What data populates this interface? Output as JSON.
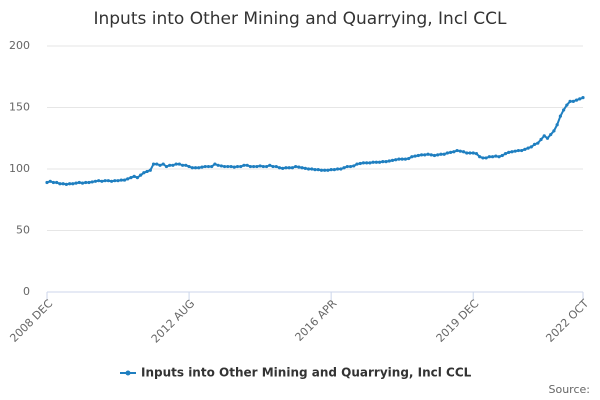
{
  "chart_data": {
    "type": "line",
    "title": "Inputs into Other Mining and Quarrying, Incl CCL",
    "source": "Source:",
    "categories": [
      "2008 DEC",
      null,
      null,
      null,
      null,
      null,
      null,
      null,
      null,
      null,
      null,
      null,
      null,
      null,
      null,
      null,
      null,
      null,
      null,
      null,
      null,
      null,
      null,
      null,
      null,
      null,
      null,
      null,
      null,
      null,
      null,
      null,
      null,
      null,
      null,
      null,
      null,
      null,
      null,
      null,
      null,
      null,
      null,
      null,
      "2012 AUG",
      null,
      null,
      null,
      null,
      null,
      null,
      null,
      null,
      null,
      null,
      null,
      null,
      null,
      null,
      null,
      null,
      null,
      null,
      null,
      null,
      null,
      null,
      null,
      null,
      null,
      null,
      null,
      null,
      null,
      null,
      null,
      null,
      null,
      null,
      null,
      null,
      null,
      null,
      null,
      null,
      null,
      null,
      null,
      "2016 APR",
      null,
      null,
      null,
      null,
      null,
      null,
      null,
      null,
      null,
      null,
      null,
      null,
      null,
      null,
      null,
      null,
      null,
      null,
      null,
      null,
      null,
      null,
      null,
      null,
      null,
      null,
      null,
      null,
      null,
      null,
      null,
      null,
      null,
      null,
      null,
      null,
      null,
      null,
      null,
      null,
      null,
      null,
      null,
      "2019 DEC",
      null,
      null,
      null,
      null,
      null,
      null,
      null,
      null,
      null,
      null,
      null,
      null,
      null,
      null,
      null,
      null,
      null,
      null,
      null,
      null,
      null,
      null,
      null,
      null,
      null,
      null,
      null,
      null,
      null,
      null,
      null,
      null,
      null,
      "2022 OCT"
    ],
    "series": [
      {
        "name": "Inputs into Other Mining and Quarrying, Incl CCL",
        "color": "#1f7fc0",
        "values": [
          89,
          90,
          89,
          89,
          88,
          88,
          87.5,
          88,
          88,
          88.5,
          89,
          88.5,
          89,
          89,
          89.5,
          90,
          90.5,
          90,
          90.5,
          90.5,
          90,
          90.5,
          90.5,
          91,
          91,
          92,
          93,
          94,
          93,
          95,
          97,
          98,
          99,
          104,
          104,
          103,
          104,
          102,
          103,
          103,
          104,
          104,
          103,
          103,
          102,
          101,
          101,
          101,
          101.5,
          102,
          102,
          102,
          104,
          103,
          102.5,
          102,
          102,
          102,
          101.5,
          102,
          102,
          103,
          103,
          102,
          102,
          102,
          102.5,
          102,
          102,
          103,
          102,
          102,
          101,
          100.5,
          101,
          101,
          101,
          102,
          101.5,
          101,
          100.5,
          100,
          100,
          99.5,
          99.5,
          99,
          99,
          99,
          99.5,
          99.5,
          100,
          100,
          101,
          102,
          102,
          102.5,
          104,
          104.5,
          105,
          105,
          105,
          105.5,
          105.5,
          105.5,
          106,
          106,
          106.5,
          107,
          107.5,
          108,
          108,
          108,
          108.5,
          110,
          110.5,
          111,
          111.5,
          111.5,
          112,
          111.5,
          111,
          111.5,
          112,
          112,
          113,
          113.5,
          114,
          115,
          114.5,
          114,
          113,
          113,
          113,
          112.5,
          110,
          109,
          109,
          110,
          110,
          110.5,
          110,
          111,
          112.5,
          113.5,
          114,
          114.5,
          115,
          115,
          116,
          117,
          118,
          120,
          121,
          124,
          127,
          125,
          128,
          131,
          136,
          143,
          148,
          152,
          155,
          155,
          156,
          157,
          158
        ]
      }
    ],
    "ylim": [
      0,
      200
    ],
    "yticks": [
      0,
      50,
      100,
      150,
      200
    ],
    "grid": true
  }
}
